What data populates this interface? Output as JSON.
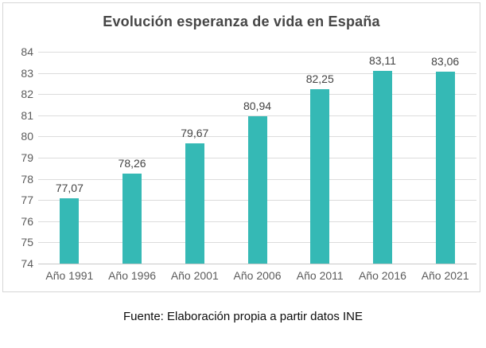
{
  "title": "Evolución esperanza de vida en España",
  "source_caption": "Fuente: Elaboración propia a partir datos INE",
  "colors": {
    "bar": "#35b9b5",
    "gridline": "#dcdcdc",
    "baseline": "#c9c9c9",
    "card_border": "#d6d6d6",
    "title_text": "#464646",
    "axis_text": "#5b5b5b",
    "value_label_text": "#434343",
    "caption_text": "#0d0d0d"
  },
  "chart_data": {
    "type": "bar",
    "title": "Evolución esperanza de vida en España",
    "categories": [
      "Año 1991",
      "Año 1996",
      "Año 2001",
      "Año 2006",
      "Año 2011",
      "Año 2016",
      "Año 2021"
    ],
    "values": [
      77.07,
      78.26,
      79.67,
      80.94,
      82.25,
      83.11,
      83.06
    ],
    "value_labels": [
      "77,07",
      "78,26",
      "79,67",
      "80,94",
      "82,25",
      "83,11",
      "83,06"
    ],
    "xlabel": "",
    "ylabel": "",
    "ylim": [
      74,
      84
    ],
    "ytick_step": 1,
    "ytick_labels": [
      "74",
      "75",
      "76",
      "77",
      "78",
      "79",
      "80",
      "81",
      "82",
      "83",
      "84"
    ],
    "grid": true,
    "legend": false,
    "series_color": "#35b9b5"
  }
}
